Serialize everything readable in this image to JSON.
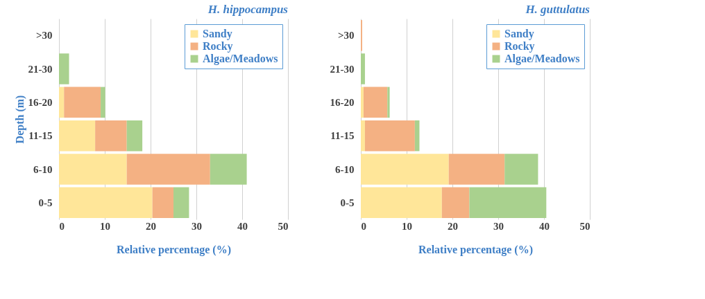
{
  "chart_data": [
    {
      "type": "bar",
      "orientation": "horizontal",
      "stacked": true,
      "title": "H. hippocampus",
      "xlabel": "Relative percentage (%)",
      "ylabel": "Depth (m)",
      "categories": [
        ">30",
        "21-30",
        "16-20",
        "11-15",
        "6-10",
        "0-5"
      ],
      "series": [
        {
          "name": "Sandy",
          "color": "#ffe699",
          "values": [
            0,
            0,
            1.1,
            7.9,
            14.8,
            20.4
          ]
        },
        {
          "name": "Rocky",
          "color": "#f4b183",
          "values": [
            0,
            0,
            8.0,
            6.9,
            18.2,
            4.6
          ]
        },
        {
          "name": "Algae/Meadows",
          "color": "#a9d18e",
          "values": [
            0,
            2.2,
            1.0,
            3.4,
            8.0,
            3.4
          ]
        }
      ],
      "xlim": [
        0,
        50
      ],
      "xticks": [
        0,
        10,
        20,
        30,
        40,
        50
      ],
      "grid": "x",
      "legend": "top right"
    },
    {
      "type": "bar",
      "orientation": "horizontal",
      "stacked": true,
      "title": "H. guttulatus",
      "xlabel": "Relative percentage (%)",
      "categories": [
        ">30",
        "21-30",
        "16-20",
        "11-15",
        "6-10",
        "0-5"
      ],
      "series": [
        {
          "name": "Sandy",
          "color": "#ffe699",
          "values": [
            0,
            0,
            0.6,
            0.9,
            19.2,
            17.7
          ]
        },
        {
          "name": "Rocky",
          "color": "#f4b183",
          "values": [
            0.3,
            0,
            5.2,
            10.9,
            12.2,
            6.0
          ]
        },
        {
          "name": "Algae/Meadows",
          "color": "#a9d18e",
          "values": [
            0,
            0.9,
            0.5,
            1.0,
            7.3,
            16.8
          ]
        }
      ],
      "xlim": [
        0,
        50
      ],
      "xticks": [
        0,
        10,
        20,
        30,
        40,
        50
      ],
      "grid": "x",
      "legend": "top right"
    }
  ]
}
